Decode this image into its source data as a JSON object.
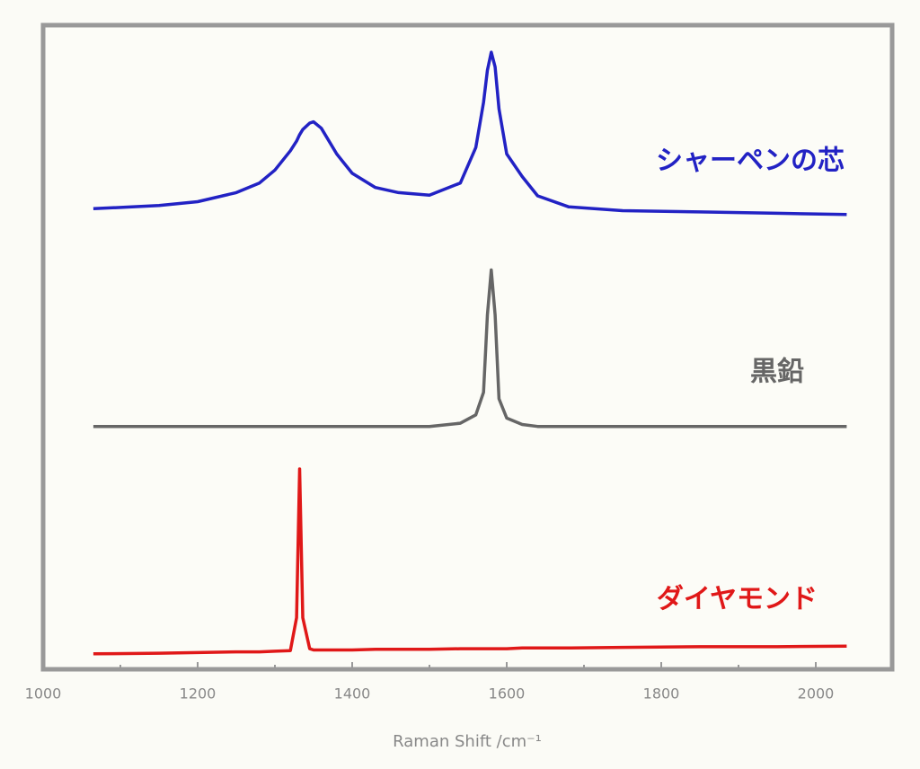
{
  "chart_data": {
    "type": "line",
    "x_label": "Raman Shift /cm⁻¹",
    "xlim": [
      1000,
      2100
    ],
    "xticks": [
      1000,
      1200,
      1400,
      1600,
      1800,
      2000
    ],
    "xminorticks": [
      1100,
      1300,
      1500,
      1700,
      1900
    ],
    "ylim": [
      0,
      100
    ],
    "x": [
      1065,
      1150,
      1200,
      1250,
      1280,
      1300,
      1320,
      1328,
      1332,
      1336,
      1345,
      1350,
      1360,
      1380,
      1400,
      1430,
      1460,
      1500,
      1540,
      1560,
      1570,
      1575,
      1580,
      1585,
      1590,
      1600,
      1620,
      1640,
      1680,
      1750,
      1850,
      1950,
      2040
    ],
    "series": [
      {
        "name": "シャーペンの芯",
        "color": "#2222c4",
        "values": [
          71.5,
          72.0,
          72.6,
          74.0,
          75.5,
          77.5,
          80.5,
          82.0,
          83.0,
          83.8,
          84.8,
          85.0,
          84.0,
          80.0,
          77.0,
          74.8,
          74.0,
          73.6,
          75.5,
          81.0,
          88.0,
          93.0,
          95.8,
          93.5,
          87.0,
          80.0,
          76.5,
          73.5,
          71.8,
          71.2,
          71.0,
          70.8,
          70.6
        ]
      },
      {
        "name": "黒鉛",
        "color": "#666666",
        "values": [
          37.7,
          37.7,
          37.7,
          37.7,
          37.7,
          37.7,
          37.7,
          37.7,
          37.7,
          37.7,
          37.7,
          37.7,
          37.7,
          37.7,
          37.7,
          37.7,
          37.7,
          37.7,
          38.2,
          39.5,
          43.0,
          55.0,
          62.0,
          55.0,
          42.0,
          39.0,
          38.0,
          37.7,
          37.7,
          37.7,
          37.7,
          37.7,
          37.7
        ]
      },
      {
        "name": "ダイヤモンド",
        "color": "#e01818",
        "values": [
          2.4,
          2.5,
          2.6,
          2.7,
          2.7,
          2.8,
          2.9,
          8.0,
          31.1,
          8.0,
          3.2,
          3.0,
          3.0,
          3.0,
          3.0,
          3.1,
          3.1,
          3.1,
          3.2,
          3.2,
          3.2,
          3.2,
          3.2,
          3.2,
          3.2,
          3.2,
          3.3,
          3.3,
          3.3,
          3.4,
          3.5,
          3.5,
          3.6
        ]
      }
    ]
  }
}
